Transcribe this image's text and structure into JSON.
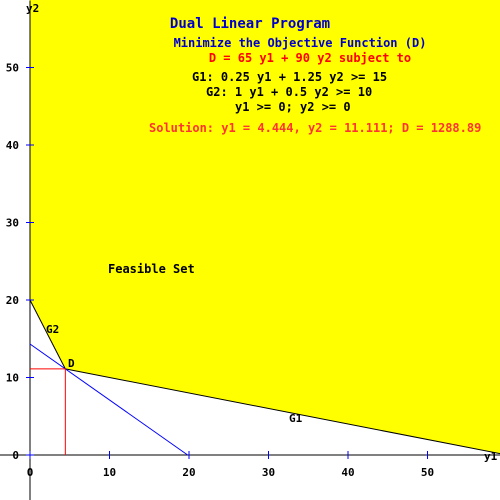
{
  "chart_data": {
    "type": "line",
    "title": "Dual Linear Program",
    "subtitle": "Minimize the Objective Function (D)",
    "objective": "D =  65 y1  +  90 y2   subject to",
    "constraints": [
      "G1:  0.25 y1  +  1.25 y2   >=  15",
      "G2:  1 y1  +  0.5 y2   >=  10",
      "y1 >= 0; y2 >= 0"
    ],
    "solution": "Solution: y1 = 4.444,  y2 = 11.111;  D = 1288.89",
    "xlabel": "y1",
    "ylabel": "y2",
    "xlim": [
      0,
      59
    ],
    "ylim": [
      -5,
      58
    ],
    "xticks": [
      0,
      10,
      20,
      30,
      40,
      50
    ],
    "yticks": [
      0,
      10,
      20,
      30,
      40,
      50
    ],
    "region_label": "Feasible Set",
    "lines": [
      {
        "name": "G1",
        "points": [
          [
            4.444,
            11.111
          ],
          [
            60,
            0
          ]
        ]
      },
      {
        "name": "G2",
        "points": [
          [
            0,
            20
          ],
          [
            4.444,
            11.111
          ]
        ]
      },
      {
        "name": "objective",
        "points": [
          [
            0,
            14.32
          ],
          [
            19.83,
            0
          ]
        ]
      }
    ],
    "optimum": {
      "label": "D",
      "x": 4.444,
      "y": 11.111
    },
    "colors": {
      "feasible": "#ffff00",
      "title": "#0000cc",
      "objective_text": "#ff0000",
      "solution_text": "#ff3333",
      "objective_line": "#0000ff",
      "optimum_guides": "#ff0000",
      "ticks": "#0000ff"
    }
  }
}
